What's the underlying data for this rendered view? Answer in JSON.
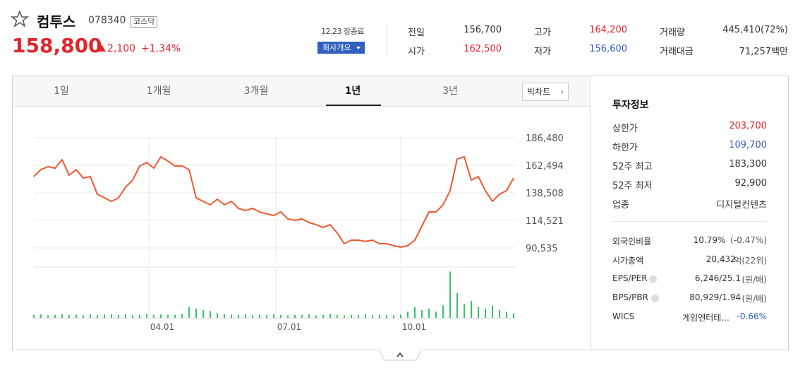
{
  "header": {
    "name": "컴투스",
    "code": "078340",
    "market": "코스닥",
    "price": "158,800",
    "change": "2,100",
    "change_rate": "+1.34%",
    "status": "12.23 장종료",
    "company_button": "회사개요"
  },
  "quote": [
    {
      "label": "전일",
      "value": "156,700",
      "color": "#333333"
    },
    {
      "label": "고가",
      "value": "164,200",
      "color": "#e0262d"
    },
    {
      "label": "거래량",
      "value": "445,410(72%)",
      "color": "#333333"
    },
    {
      "label": "시가",
      "value": "162,500",
      "color": "#e0262d"
    },
    {
      "label": "저가",
      "value": "156,600",
      "color": "#2f5fbf"
    },
    {
      "label": "거래대금",
      "value": "71,257백만",
      "color": "#333333"
    }
  ],
  "tabs": [
    "1일",
    "1개월",
    "3개월",
    "1년",
    "3년"
  ],
  "active_tab": 3,
  "big_chart": "빅차트",
  "chart_data": {
    "type": "line",
    "color": "#f0582f",
    "values": [
      152700,
      158800,
      161300,
      160000,
      167400,
      153900,
      158800,
      151400,
      152700,
      137300,
      134200,
      131100,
      134200,
      143400,
      149600,
      161900,
      165000,
      160000,
      169900,
      166200,
      161900,
      161900,
      158800,
      134200,
      131100,
      128100,
      133000,
      128100,
      131100,
      125000,
      123100,
      125000,
      121900,
      120100,
      118800,
      121900,
      115800,
      114500,
      115800,
      112700,
      110800,
      108400,
      110800,
      103500,
      94200,
      97300,
      97300,
      96100,
      97300,
      94200,
      94200,
      92400,
      91200,
      92400,
      97300,
      109600,
      121900,
      121900,
      128100,
      140400,
      168000,
      169900,
      149600,
      152700,
      140400,
      131100,
      137300,
      140400,
      151400
    ],
    "ylim": [
      77600,
      189600
    ],
    "yticks": [
      {
        "value": 186480,
        "label": "186,480"
      },
      {
        "value": 162494,
        "label": "162,494"
      },
      {
        "value": 138508,
        "label": "138,508"
      },
      {
        "value": 114521,
        "label": "114,521"
      },
      {
        "value": 90535,
        "label": "90,535"
      }
    ],
    "xlim": [
      0,
      68
    ],
    "xticks": [
      {
        "value": 16.3,
        "label": "04.01"
      },
      {
        "value": 34.3,
        "label": "07.01"
      },
      {
        "value": 52,
        "label": "10.01"
      }
    ],
    "grid": true,
    "volume": {
      "color": "#3cc06b",
      "ylim": [
        0,
        1600000
      ],
      "values": [
        90000,
        110000,
        80000,
        100000,
        120000,
        90000,
        100000,
        80000,
        110000,
        90000,
        100000,
        120000,
        90000,
        110000,
        80000,
        100000,
        130000,
        90000,
        110000,
        100000,
        90000,
        120000,
        350000,
        300000,
        250000,
        220000,
        150000,
        120000,
        100000,
        90000,
        110000,
        80000,
        100000,
        90000,
        120000,
        90000,
        80000,
        100000,
        90000,
        110000,
        80000,
        100000,
        120000,
        90000,
        80000,
        100000,
        90000,
        110000,
        80000,
        100000,
        90000,
        80000,
        100000,
        200000,
        350000,
        250000,
        300000,
        200000,
        400000,
        1500000,
        800000,
        450000,
        550000,
        350000,
        300000,
        400000,
        250000,
        200000,
        150000
      ]
    }
  },
  "invest_info": {
    "title": "투자정보",
    "rows": [
      {
        "label": "상한가",
        "value": "203,700",
        "color": "#e0262d"
      },
      {
        "label": "하한가",
        "value": "109,700",
        "color": "#2f5fbf"
      },
      {
        "label": "52주 최고",
        "value": "183,300",
        "color": "#333333"
      },
      {
        "label": "52주 최저",
        "value": "92,900",
        "color": "#333333"
      },
      {
        "label": "업종",
        "value": "디지털컨텐츠",
        "color": "#333333"
      }
    ],
    "rows2": [
      {
        "label": "외국인비율",
        "value": "10.79%",
        "extra": "(-0.47%)",
        "help": false
      },
      {
        "label": "시가총액",
        "value": "20,432",
        "extra": "억(22위)",
        "help": false
      },
      {
        "label": "EPS/PER",
        "value": "6,246/25.1",
        "extra": "(원/배)",
        "help": true
      },
      {
        "label": "BPS/PBR",
        "value": "80,929/1.94",
        "extra": "(원/배)",
        "help": true
      },
      {
        "label": "WICS",
        "value": "게임엔터테...",
        "extra": "-0.66%",
        "help": false,
        "extra_color": "#2f5fbf"
      }
    ]
  }
}
